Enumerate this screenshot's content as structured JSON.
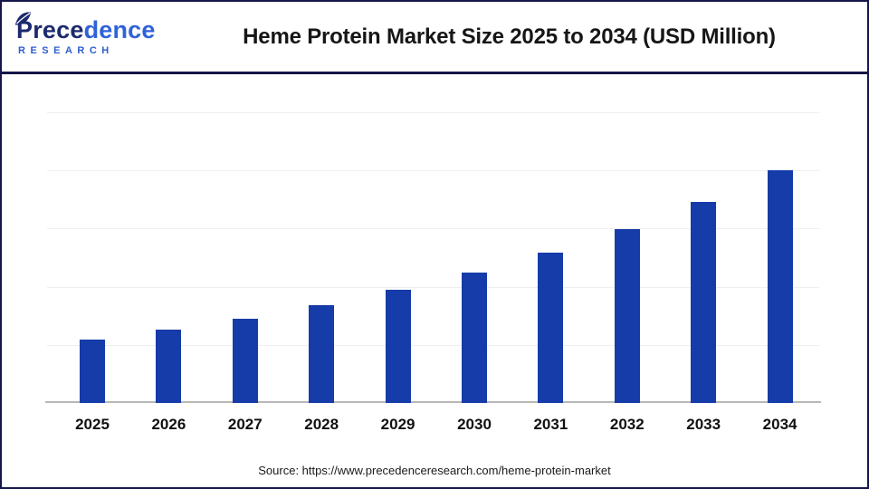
{
  "logo": {
    "part1": "Prece",
    "part2": "dence",
    "subtitle": "RESEARCH"
  },
  "header": {
    "title": "Heme Protein Market Size 2025 to 2034 (USD Million)"
  },
  "footer": {
    "source_text": "Source: https://www.precedenceresearch.com/heme-protein-market"
  },
  "colors": {
    "bar": "#153ca8",
    "border_navy": "#16164a",
    "axis_line": "#b8b8b8",
    "gridline": "#efefef",
    "title_text": "#161616",
    "logo_navy": "#1c2a6d",
    "logo_blue": "#2f62d8"
  },
  "chart_data": {
    "type": "bar",
    "title": "Heme Protein Market Size 2025 to 2034 (USD Million)",
    "categories": [
      "2025",
      "2026",
      "2027",
      "2028",
      "2029",
      "2030",
      "2031",
      "2032",
      "2033",
      "2034"
    ],
    "values": [
      468.22,
      541.03,
      625.16,
      722.37,
      834.7,
      964.5,
      1114.48,
      1287.78,
      1488.03,
      1719.95
    ],
    "unit": "USD Million",
    "xlabel": "",
    "ylabel": "",
    "ylim": [
      0,
      2150
    ],
    "gridline_step": 430,
    "grid": "horizontal",
    "legend_position": "none",
    "y_tick_labels_shown": false,
    "value_labels_shown": false
  }
}
